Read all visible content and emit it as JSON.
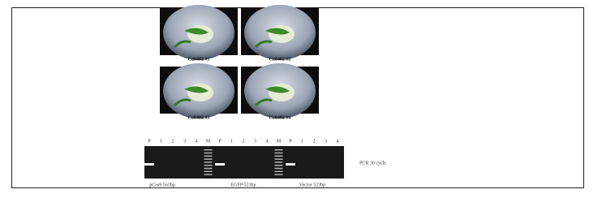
{
  "photos": [
    {
      "label": "Ca0402 #1"
    },
    {
      "label": "Ca0402 #2"
    },
    {
      "label": "Ca0402 #3"
    },
    {
      "label": "Ca0402 #4"
    }
  ],
  "gel": {
    "lanes": [
      "P",
      "1",
      "2",
      "3",
      "4",
      "M",
      "P",
      "1",
      "2",
      "3",
      "4",
      "M",
      "P",
      "1",
      "2",
      "3",
      "4"
    ],
    "captions": [
      "pCas9 563bp",
      "EGFP 523bp",
      "Vector 523bp"
    ],
    "note": "PCR 30 cycle"
  }
}
